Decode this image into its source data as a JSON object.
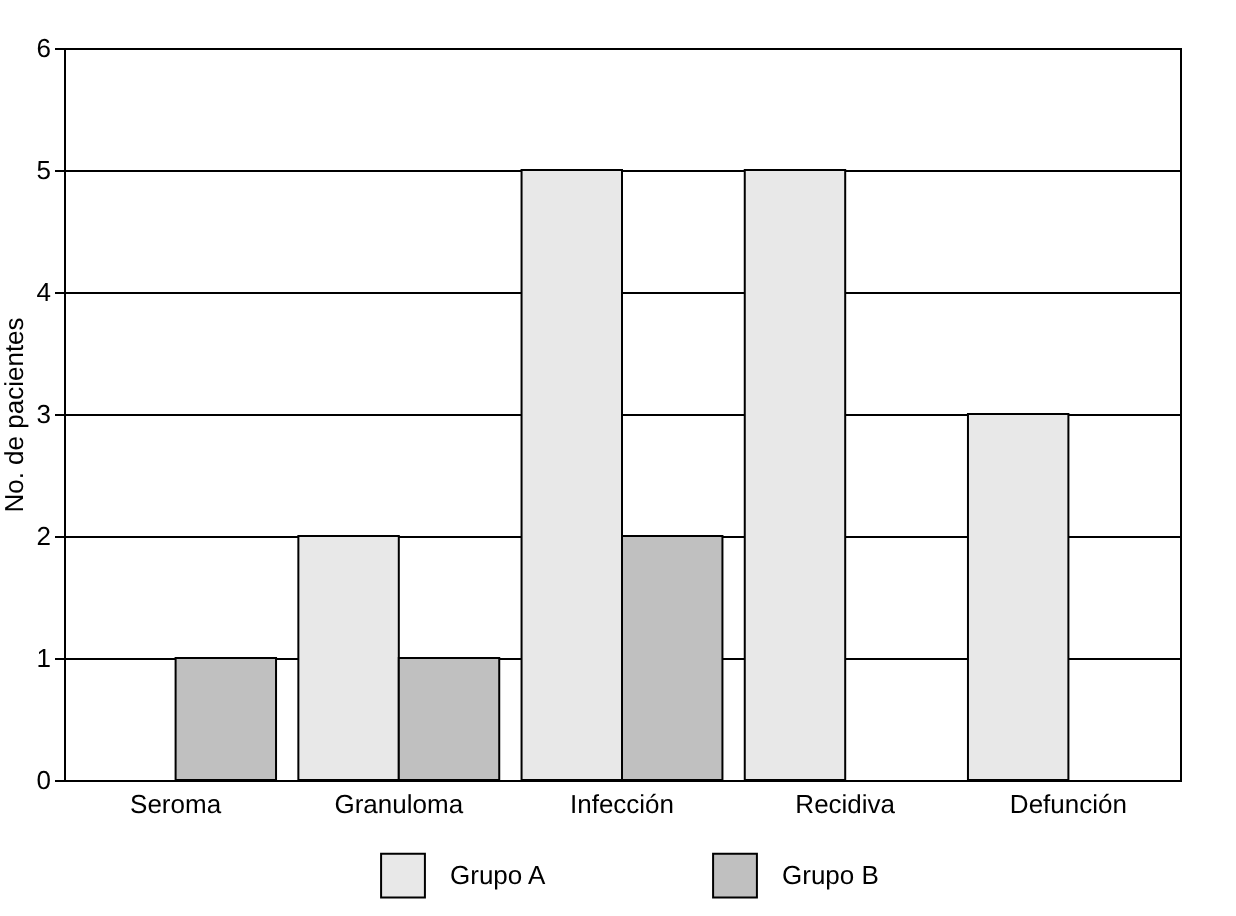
{
  "chart_data": {
    "type": "bar",
    "ylabel": "No. de pacientes",
    "categories": [
      "Seroma",
      "Granuloma",
      "Infección",
      "Recidiva",
      "Defunción"
    ],
    "series": [
      {
        "name": "Grupo A",
        "color": "#e8e8e8",
        "values": [
          0,
          2,
          5,
          5,
          3
        ]
      },
      {
        "name": "Grupo B",
        "color": "#c0c0c0",
        "values": [
          1,
          1,
          2,
          0,
          0
        ]
      }
    ],
    "ylim": [
      0,
      6
    ],
    "yticks": [
      0,
      1,
      2,
      3,
      4,
      5,
      6
    ],
    "grid": "y",
    "legend": "bottom"
  }
}
